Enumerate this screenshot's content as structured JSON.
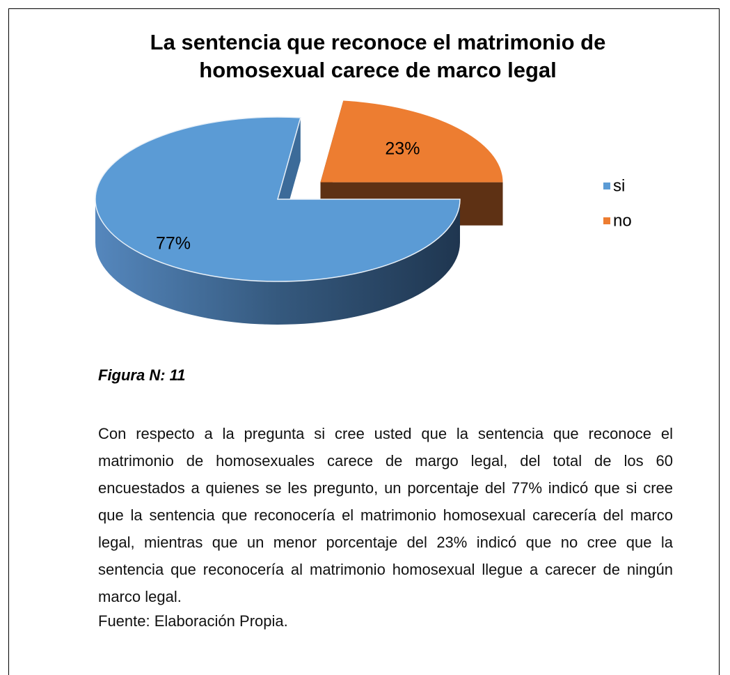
{
  "chart_data": {
    "type": "pie",
    "title": "La sentencia que reconoce el matrimonio de homosexual carece de marco legal",
    "categories": [
      "si",
      "no"
    ],
    "values": [
      77,
      23
    ],
    "value_labels": [
      "77%",
      "23%"
    ],
    "colors": [
      "#5b9bd5",
      "#ed7d31"
    ],
    "legend": "right"
  },
  "figure_label": "Figura N: 11",
  "paragraph": "Con respecto a la pregunta si cree usted que la sentencia que reconoce el matrimonio de homosexuales carece de margo legal, del total de los 60 encuestados a quienes se les pregunto, un porcentaje del 77%  indicó que si cree que la sentencia que reconocería el matrimonio homosexual carecería del marco legal, mientras que un menor porcentaje del 23% indicó que no cree que la sentencia que reconocería al matrimonio homosexual llegue a carecer de ningún marco legal.",
  "source": "Fuente: Elaboración Propia."
}
